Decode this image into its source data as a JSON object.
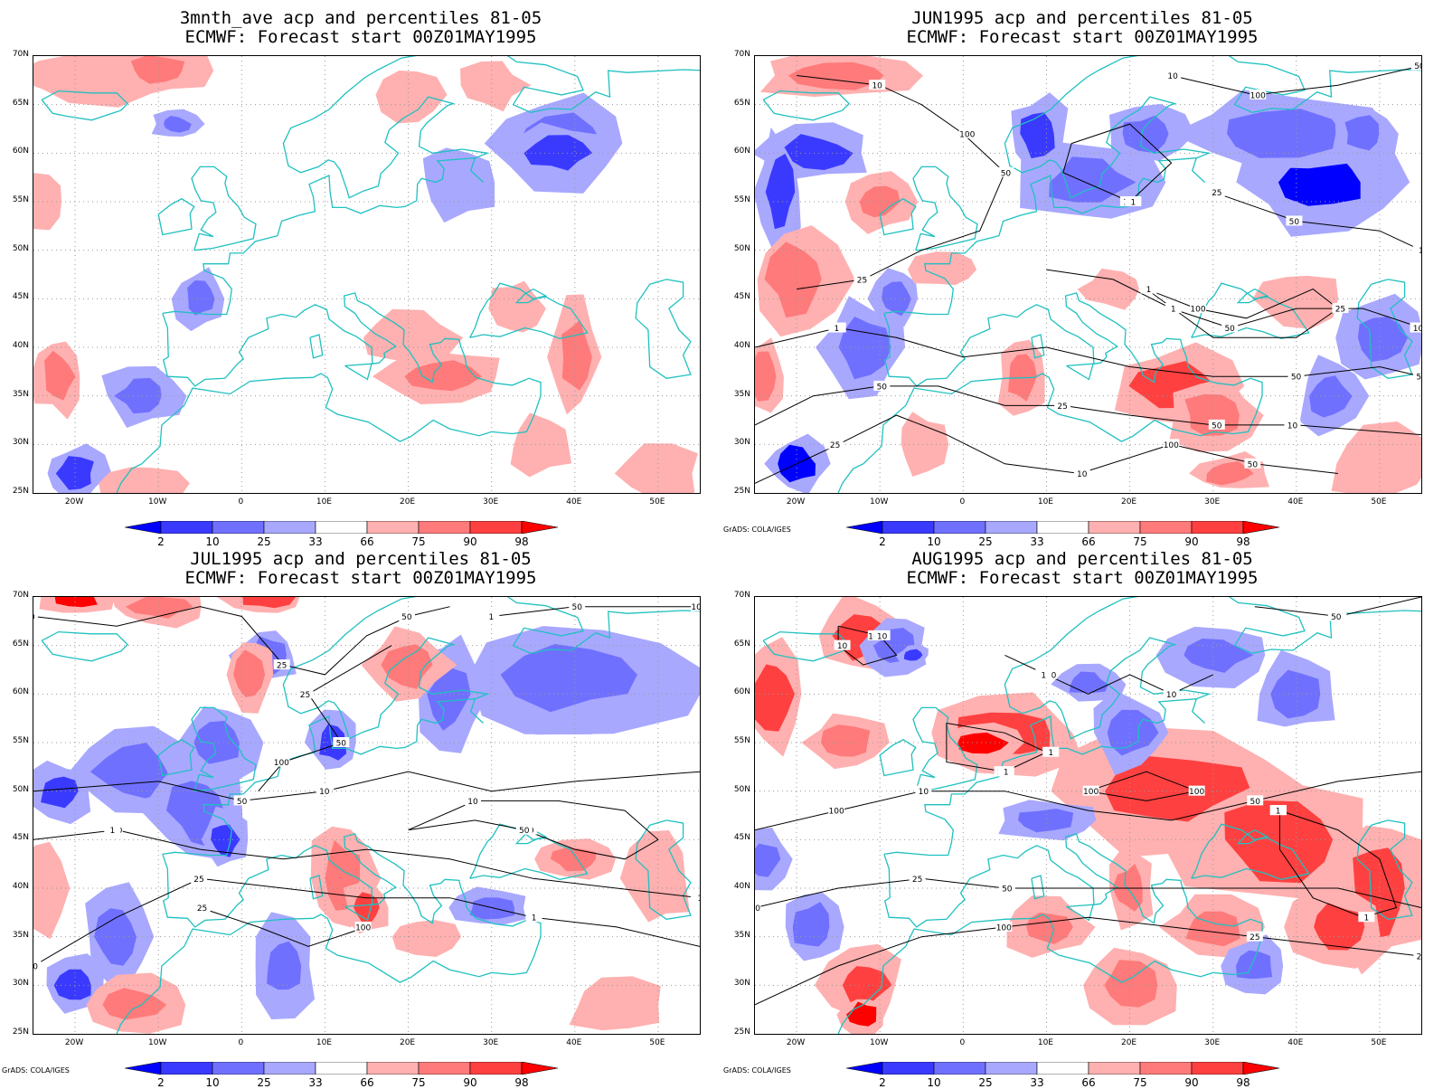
{
  "credit": "GrADS: COLA/IGES",
  "axes": {
    "y_ticks": [
      "70N",
      "65N",
      "60N",
      "55N",
      "50N",
      "45N",
      "40N",
      "35N",
      "30N",
      "25N"
    ],
    "x_ticks": [
      "20W",
      "10W",
      "0",
      "10E",
      "20E",
      "30E",
      "40E",
      "50E"
    ],
    "lon_range": [
      -25,
      55
    ],
    "lat_range": [
      25,
      70
    ]
  },
  "legend": {
    "levels": [
      "2",
      "10",
      "25",
      "33",
      "66",
      "75",
      "90",
      "98"
    ],
    "colors": [
      "#0000ff",
      "#3a3aff",
      "#7070ff",
      "#a8a8ff",
      "#ffffff",
      "#ffb0b0",
      "#ff7a7a",
      "#ff4040",
      "#ff0000"
    ]
  },
  "colors": {
    "coast": "#20c0c0",
    "grid": "#999999",
    "contour": "#000000"
  },
  "panels": [
    {
      "id": "ave",
      "title_line1": "3mnth_ave acp and percentiles 81-05",
      "title_line2": "ECMWF: Forecast start 00Z01MAY1995",
      "show_credit": false,
      "contour_labels": []
    },
    {
      "id": "jun",
      "title_line1": "JUN1995 acp and percentiles 81-05",
      "title_line2": "ECMWF: Forecast start 00Z01MAY1995",
      "show_credit": true,
      "contour_labels": [
        "50",
        "50",
        "100",
        "50",
        "100",
        "50",
        "50",
        "100",
        "100",
        "50",
        "50",
        "25",
        "100",
        "50",
        "25",
        "10",
        "25",
        "10",
        "10",
        "25",
        "10",
        "10",
        "10",
        "1",
        "1",
        "1",
        "1",
        "1",
        "10",
        "50",
        "25"
      ]
    },
    {
      "id": "jul",
      "title_line1": "JUL1995 acp and percentiles 81-05",
      "title_line2": "ECMWF: Forecast start 00Z01MAY1995",
      "show_credit": true,
      "contour_labels": [
        "50",
        "100",
        "50",
        "50",
        "100",
        "50",
        "50",
        "100",
        "100",
        "50",
        "25",
        "25",
        "50",
        "100",
        "10",
        "1",
        "1",
        "10",
        "1",
        "10",
        "25",
        "1",
        "50",
        "25",
        "1"
      ]
    },
    {
      "id": "aug",
      "title_line1": "AUG1995 acp and percentiles 81-05",
      "title_line2": "ECMWF: Forecast start 00Z01MAY1995",
      "show_credit": true,
      "contour_labels": [
        "100",
        "100",
        "100",
        "100",
        "100",
        "50",
        "50",
        "50",
        "100",
        "50",
        "25",
        "25",
        "10",
        "10",
        "1",
        "1",
        "50",
        "100",
        "10",
        "50",
        "25",
        "10",
        "1",
        "1",
        "1"
      ]
    }
  ]
}
